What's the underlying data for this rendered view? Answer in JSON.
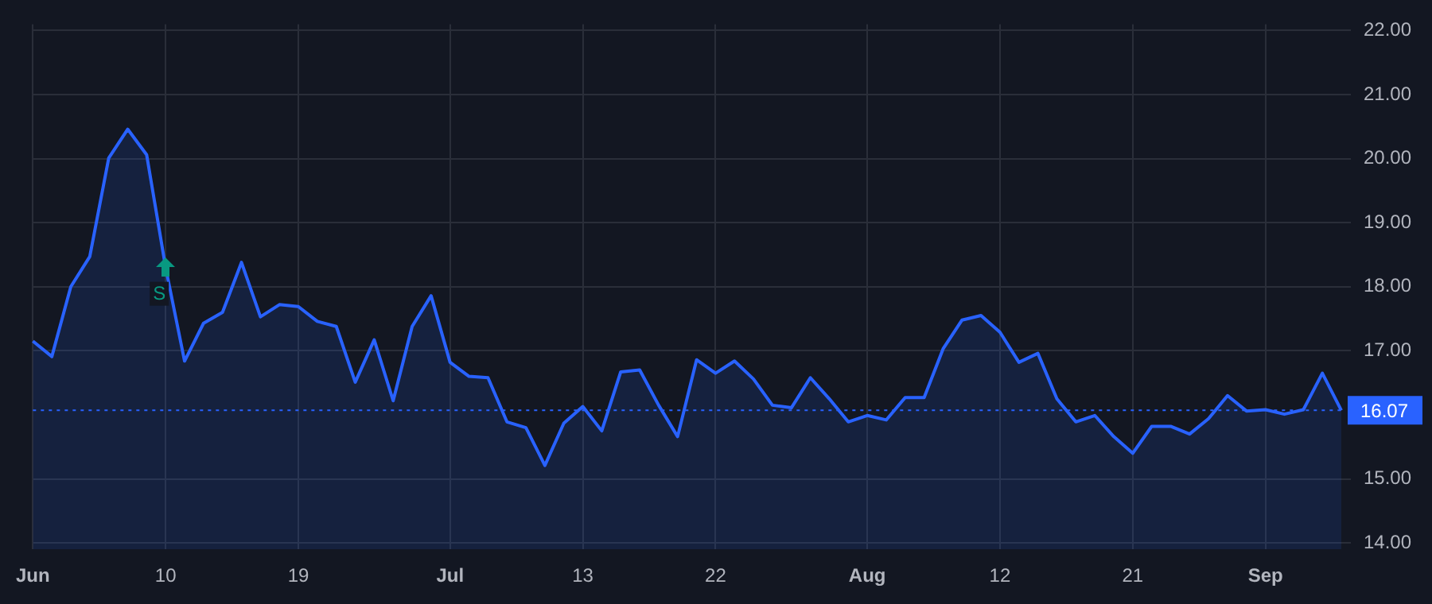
{
  "chart_data": {
    "type": "area",
    "categories": [
      "Jun",
      null,
      null,
      null,
      null,
      null,
      null,
      "10",
      null,
      null,
      null,
      null,
      null,
      null,
      "19",
      null,
      null,
      null,
      null,
      null,
      null,
      null,
      "Jul",
      null,
      null,
      null,
      null,
      null,
      null,
      "13",
      null,
      null,
      null,
      null,
      null,
      null,
      "22",
      null,
      null,
      null,
      null,
      null,
      null,
      null,
      "Aug",
      null,
      null,
      null,
      null,
      null,
      null,
      "12",
      null,
      null,
      null,
      null,
      null,
      null,
      "21",
      null,
      null,
      null,
      null,
      null,
      null,
      "Sep",
      null,
      null,
      null,
      null
    ],
    "series": [
      {
        "color": "#2962ff",
        "values": [
          17.15,
          16.91,
          18.0,
          18.47,
          20.01,
          20.46,
          20.06,
          18.3,
          16.84,
          17.43,
          17.6,
          18.38,
          17.53,
          17.72,
          17.69,
          17.46,
          17.38,
          16.51,
          17.17,
          16.22,
          17.38,
          17.86,
          16.82,
          16.6,
          16.58,
          15.89,
          15.8,
          15.21,
          15.87,
          16.13,
          15.75,
          16.67,
          16.7,
          16.15,
          15.66,
          16.86,
          16.65,
          16.84,
          16.56,
          16.15,
          16.11,
          16.58,
          16.25,
          15.89,
          15.99,
          15.92,
          16.27,
          16.27,
          17.03,
          17.48,
          17.55,
          17.29,
          16.82,
          16.96,
          16.25,
          15.89,
          15.99,
          15.66,
          15.4,
          15.82,
          15.82,
          15.7,
          15.94,
          16.3,
          16.06,
          16.08,
          16.01,
          16.08,
          16.65,
          16.07
        ]
      }
    ],
    "ylim": [
      13.9,
      22.1
    ],
    "yticks": [
      {
        "value": 14,
        "label": "14.00"
      },
      {
        "value": 15,
        "label": "15.00"
      },
      {
        "value": 17,
        "label": "17.00"
      },
      {
        "value": 18,
        "label": "18.00"
      },
      {
        "value": 19,
        "label": "19.00"
      },
      {
        "value": 20,
        "label": "20.00"
      },
      {
        "value": 21,
        "label": "21.00"
      },
      {
        "value": 22,
        "label": "22.00"
      }
    ],
    "ref_lines": [
      {
        "axis": "y",
        "value": 16.07,
        "label": "16.07",
        "color": "#2962ff",
        "line_style": "dotted"
      }
    ],
    "annotations": [
      {
        "text": "S",
        "x": "10",
        "y": 18.3
      }
    ],
    "grid": true,
    "legend": false,
    "marker": "none",
    "line_style": "solid"
  }
}
